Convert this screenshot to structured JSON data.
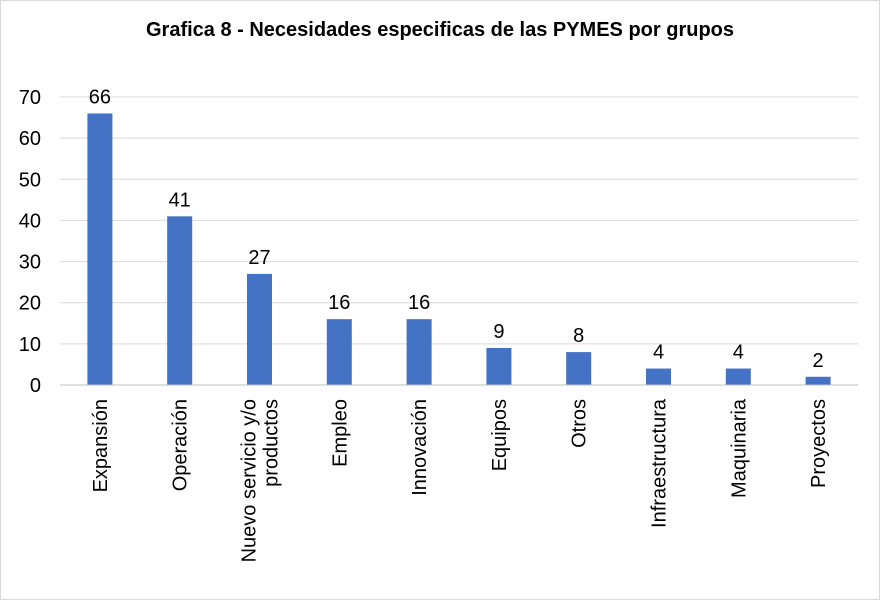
{
  "chart_data": {
    "type": "bar",
    "title": "Grafica 8 - Necesidades especificas de las PYMES por grupos",
    "categories": [
      [
        "Expansión"
      ],
      [
        "Operación"
      ],
      [
        "Nuevo servicio y/o",
        "productos"
      ],
      [
        "Empleo"
      ],
      [
        "Innovación"
      ],
      [
        "Equipos"
      ],
      [
        "Otros"
      ],
      [
        "Infraestructura"
      ],
      [
        "Maquinaria"
      ],
      [
        "Proyectos"
      ]
    ],
    "values": [
      66,
      41,
      27,
      16,
      16,
      9,
      8,
      4,
      4,
      2
    ],
    "ylim": [
      0,
      70
    ],
    "yticks": [
      0,
      10,
      20,
      30,
      40,
      50,
      60,
      70
    ],
    "grid": true,
    "data_labels": true,
    "bar_color": "#4472C4",
    "grid_color": "#d9d9d9"
  }
}
